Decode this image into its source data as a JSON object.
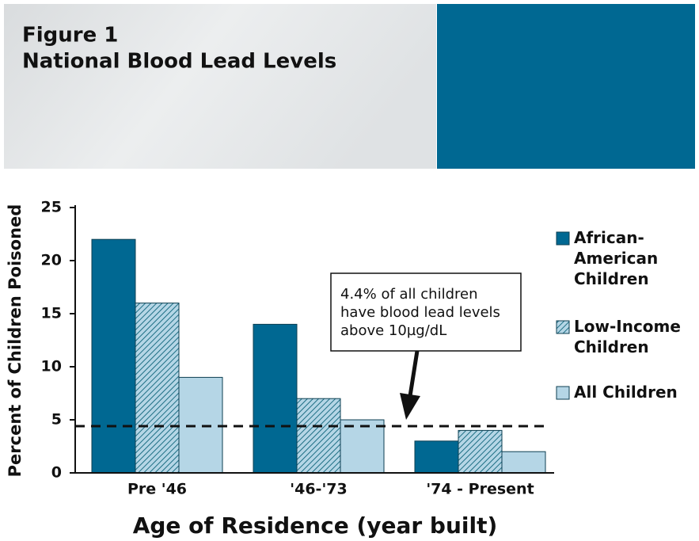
{
  "chart_data": {
    "type": "bar",
    "title": "Figure 1",
    "subtitle": "National Blood Lead Levels",
    "x_label": "Age of Residence (year built)",
    "y_label": "Percent of Children Poisoned",
    "categories": [
      "Pre '46",
      "'46-'73",
      "'74 - Present"
    ],
    "series": [
      {
        "name": "African-American Children",
        "color": "#006892",
        "hatch": false,
        "values": [
          22,
          14,
          3
        ]
      },
      {
        "name": "Low-Income Children",
        "color": "#b5d6e6",
        "hatch": true,
        "values": [
          16,
          7,
          4
        ]
      },
      {
        "name": "All Children",
        "color": "#b5d6e6",
        "hatch": false,
        "values": [
          9,
          5,
          2
        ]
      }
    ],
    "ylim": [
      0,
      25
    ],
    "yticks": [
      0,
      5,
      10,
      15,
      20,
      25
    ],
    "reference_line": 4.4,
    "annotation": [
      "4.4% of all children",
      "have blood lead levels",
      "above 10µg/dL"
    ]
  }
}
